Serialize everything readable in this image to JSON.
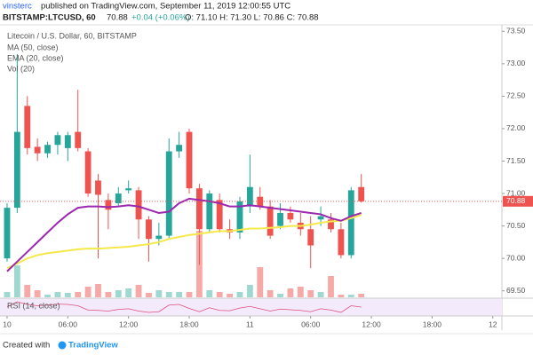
{
  "header": {
    "author": "vinsterc",
    "published": "published on TradingView.com, September 11, 2019 12:00:55 UTC",
    "symbol": "BITSTAMP:LTCUSD, 60",
    "last": "70.88",
    "change": "+0.04 (+0.06%)",
    "ohlc": "O: 71.10 H: 71.30 L: 70.86 C: 70.88"
  },
  "legend": {
    "title": "Litecoin / U.S. Dollar, 60, BITSTAMP",
    "ma": "MA (50, close)",
    "ema": "EMA (20, close)",
    "vol": "Vol (20)",
    "rsi": "RSI (14, close)"
  },
  "footer": {
    "text": "Created with",
    "brand": "TradingView"
  },
  "chart_data": {
    "type": "candlestick",
    "x": [
      0,
      1,
      2,
      3,
      4,
      5,
      6,
      7,
      8,
      9,
      10,
      11,
      12,
      13,
      14,
      15,
      16,
      17,
      18,
      19,
      20,
      21,
      22,
      23,
      24,
      25,
      26,
      27,
      28,
      29,
      30,
      31,
      32,
      33,
      34,
      35
    ],
    "open": [
      70.0,
      70.78,
      72.35,
      71.72,
      71.62,
      71.75,
      71.7,
      71.95,
      71.65,
      71.2,
      70.9,
      70.85,
      71.05,
      71.05,
      70.6,
      70.3,
      70.35,
      71.65,
      71.95,
      71.08,
      70.45,
      70.9,
      70.45,
      70.4,
      70.8,
      70.95,
      70.8,
      70.5,
      70.7,
      70.55,
      70.45,
      70.6,
      70.6,
      70.45,
      70.05,
      71.1
    ],
    "high": [
      70.85,
      73.15,
      72.5,
      71.85,
      71.8,
      71.95,
      71.95,
      72.6,
      71.7,
      71.3,
      71.0,
      71.1,
      71.2,
      71.1,
      70.65,
      70.55,
      71.85,
      71.95,
      72.0,
      71.15,
      71.05,
      71.0,
      70.6,
      70.95,
      71.6,
      71.1,
      70.9,
      70.85,
      70.8,
      70.7,
      70.65,
      70.8,
      70.7,
      70.55,
      71.1,
      71.3
    ],
    "low": [
      69.95,
      70.7,
      71.6,
      71.5,
      71.55,
      71.6,
      71.5,
      71.65,
      70.95,
      70.0,
      70.45,
      70.8,
      71.0,
      70.3,
      69.95,
      70.2,
      70.3,
      71.55,
      71.0,
      69.9,
      70.4,
      70.4,
      70.3,
      70.3,
      70.7,
      70.75,
      70.3,
      70.45,
      70.55,
      70.35,
      69.85,
      70.5,
      70.4,
      70.0,
      70.0,
      70.86
    ],
    "close": [
      70.78,
      71.95,
      71.7,
      71.62,
      71.75,
      71.9,
      71.9,
      71.7,
      71.0,
      70.98,
      70.75,
      71.0,
      71.08,
      70.6,
      70.3,
      70.35,
      71.65,
      71.75,
      71.08,
      70.45,
      71.0,
      70.45,
      70.4,
      70.88,
      71.1,
      70.8,
      70.35,
      70.7,
      70.6,
      70.45,
      70.2,
      70.65,
      70.45,
      70.05,
      71.05,
      70.88
    ],
    "volume": [
      6,
      36,
      14,
      8,
      3,
      6,
      5,
      6,
      12,
      15,
      6,
      8,
      10,
      14,
      5,
      8,
      6,
      6,
      6,
      75,
      8,
      6,
      4,
      6,
      14,
      34,
      8,
      4,
      10,
      12,
      8,
      6,
      24,
      3,
      3,
      4
    ],
    "ma": [
      69.8,
      69.95,
      70.1,
      70.25,
      70.4,
      70.55,
      70.68,
      70.78,
      70.8,
      70.8,
      70.79,
      70.8,
      70.82,
      70.8,
      70.75,
      70.7,
      70.72,
      70.85,
      70.92,
      70.9,
      70.88,
      70.85,
      70.8,
      70.8,
      70.82,
      70.8,
      70.78,
      70.76,
      70.74,
      70.72,
      70.7,
      70.68,
      70.62,
      70.58,
      70.65,
      70.7
    ],
    "ema": [
      69.85,
      69.92,
      70.0,
      70.05,
      70.08,
      70.1,
      70.12,
      70.14,
      70.15,
      70.15,
      70.16,
      70.17,
      70.18,
      70.2,
      70.22,
      70.25,
      70.3,
      70.33,
      70.36,
      70.38,
      70.4,
      70.42,
      70.42,
      70.44,
      70.46,
      70.46,
      70.47,
      70.48,
      70.5,
      70.5,
      70.52,
      70.55,
      70.57,
      70.58,
      70.62,
      70.67
    ],
    "rsi": [
      55,
      70,
      62,
      58,
      60,
      63,
      62,
      58,
      45,
      44,
      42,
      47,
      49,
      42,
      38,
      40,
      60,
      62,
      50,
      40,
      52,
      44,
      43,
      51,
      56,
      49,
      42,
      48,
      46,
      44,
      40,
      49,
      45,
      38,
      58,
      54
    ],
    "up_color": "#26a69a",
    "down_color": "#ef5350",
    "up_volume_color": "#9fd8d0",
    "down_volume_color": "#f7a9a7",
    "ma_color": "#9c27b0",
    "ema_color": "#f5e94a",
    "rsi_color": "#e04d7a",
    "xlim": [
      -0.7,
      48.9
    ],
    "xticks": [
      {
        "value": 0,
        "label": "10"
      },
      {
        "value": 6,
        "label": "06:00"
      },
      {
        "value": 12,
        "label": "12:00"
      },
      {
        "value": 18,
        "label": "18:00"
      },
      {
        "value": 24,
        "label": "11"
      },
      {
        "value": 30,
        "label": "06:00"
      },
      {
        "value": 36,
        "label": "12:00"
      },
      {
        "value": 42,
        "label": "18:00"
      },
      {
        "value": 48,
        "label": "12"
      }
    ],
    "ylim": [
      69.4,
      73.6
    ],
    "yticks": [
      {
        "value": 69.5,
        "label": "69.50"
      },
      {
        "value": 70,
        "label": "70.00"
      },
      {
        "value": 70.5,
        "label": "70.50"
      },
      {
        "value": 71,
        "label": "71.00"
      },
      {
        "value": 71.5,
        "label": "71.50"
      },
      {
        "value": 72,
        "label": "72.00"
      },
      {
        "value": 72.5,
        "label": "72.50"
      },
      {
        "value": 73,
        "label": "73.00"
      },
      {
        "value": 73.5,
        "label": "73.50"
      }
    ],
    "grid": false
  }
}
